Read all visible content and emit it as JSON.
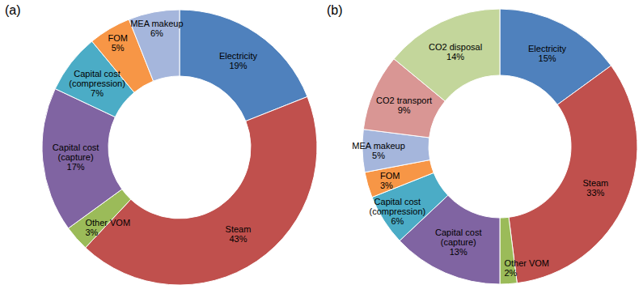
{
  "chart_data": [
    {
      "type": "donut",
      "title": "(a)",
      "categories": [
        "Electricity",
        "Steam",
        "Other VOM",
        "Capital cost (capture)",
        "Capital cost (compression)",
        "FOM",
        "MEA makeup"
      ],
      "values": [
        19,
        43,
        3,
        17,
        7,
        5,
        6
      ],
      "value_labels": [
        "19%",
        "43%",
        "3%",
        "17%",
        "7%",
        "5%",
        "6%"
      ],
      "colors": [
        "#4f81bd",
        "#c0504d",
        "#9bbb59",
        "#8064a2",
        "#4bacc6",
        "#f79646",
        "#a5b6dc"
      ],
      "data_labels": true
    },
    {
      "type": "donut",
      "title": "(b)",
      "categories": [
        "Electricity",
        "Steam",
        "Other VOM",
        "Capital cost (capture)",
        "Capital cost (compression)",
        "FOM",
        "MEA makeup",
        "CO2 transport",
        "CO2 disposal"
      ],
      "values": [
        15,
        33,
        2,
        13,
        6,
        3,
        5,
        9,
        14
      ],
      "value_labels": [
        "15%",
        "33%",
        "2%",
        "13%",
        "6%",
        "3%",
        "5%",
        "9%",
        "14%"
      ],
      "colors": [
        "#4f81bd",
        "#c0504d",
        "#9bbb59",
        "#8064a2",
        "#4bacc6",
        "#f79646",
        "#a5b6dc",
        "#d99694",
        "#c3d69b"
      ],
      "data_labels": true
    }
  ]
}
